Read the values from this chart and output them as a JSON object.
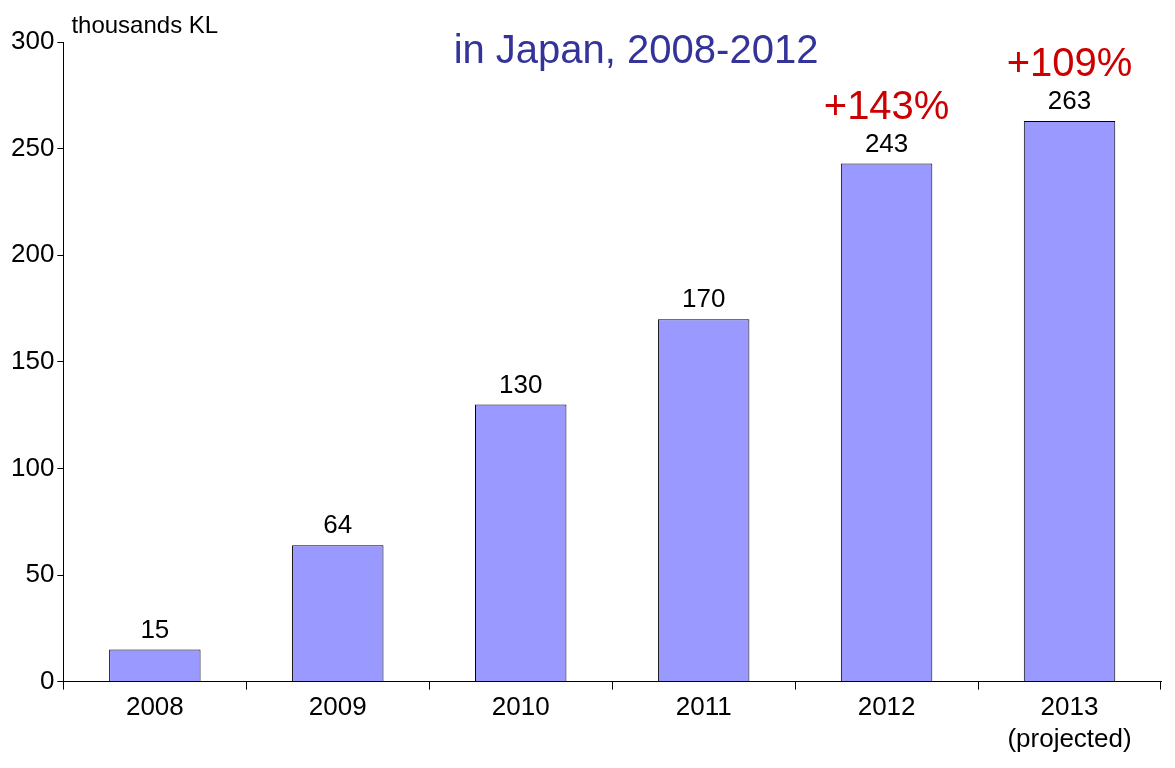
{
  "chart_data": {
    "type": "bar",
    "title": "in Japan, 2008-2012",
    "ylabel": "thousands KL",
    "categories": [
      "2008",
      "2009",
      "2010",
      "2011",
      "2012",
      "2013\n(projected)"
    ],
    "values": [
      15,
      64,
      130,
      170,
      243,
      263
    ],
    "color": "#9999ff",
    "ylim": [
      0,
      300
    ],
    "yticks": [
      0,
      50,
      100,
      150,
      200,
      250,
      300
    ],
    "grid": false,
    "legend": false,
    "data_labels": true,
    "annotations": [
      {
        "text": "+143%",
        "x": "2012",
        "y": 243
      },
      {
        "text": "+109%",
        "x": "2013\n(projected)",
        "y": 263
      }
    ]
  }
}
